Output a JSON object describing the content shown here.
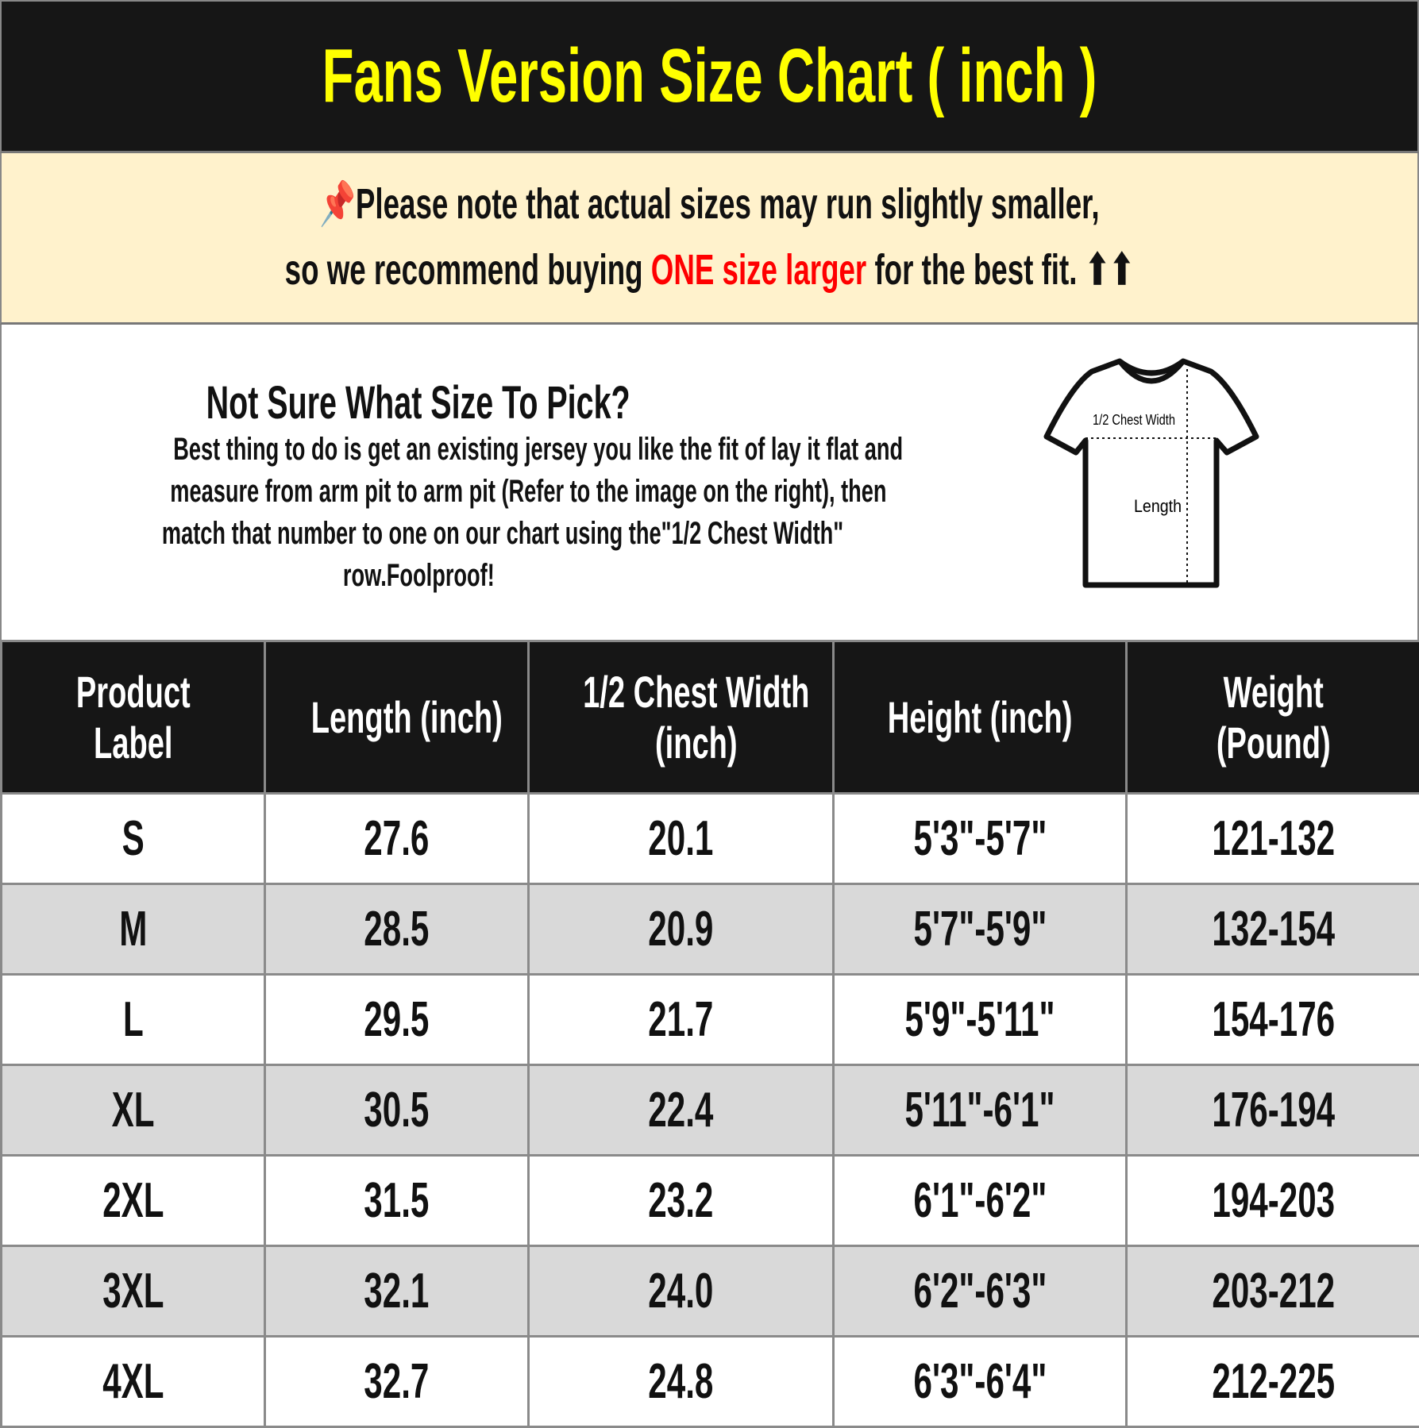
{
  "title": "Fans Version Size Chart ( inch )",
  "note": {
    "icon": "pushpin-icon",
    "line1": "Please note that actual sizes may run slightly smaller,",
    "line2_pre": "so we recommend buying ",
    "line2_highlight": "ONE size larger",
    "line2_post": " for the best fit. ⬆⬆",
    "highlight_color": "#ff0000"
  },
  "help": {
    "heading": "Not Sure What Size To Pick?",
    "lines": [
      "Best thing to do is get an existing jersey you like the fit of lay it flat and",
      "measure from arm pit to arm pit (Refer to the image on the right), then",
      "match that number to one on our chart using the\"1/2 Chest Width\"",
      "row.Foolproof!"
    ],
    "diagram": {
      "chest_label": "1/2 Chest Width",
      "length_label": "Length"
    }
  },
  "table": {
    "headers": [
      [
        "Product",
        "Label"
      ],
      [
        "Length (inch)"
      ],
      [
        "1/2 Chest Width",
        "(inch)"
      ],
      [
        "Height (inch)"
      ],
      [
        "Weight",
        "(Pound)"
      ]
    ],
    "rows": [
      [
        "S",
        "27.6",
        "20.1",
        "5'3\"-5'7\"",
        "121-132"
      ],
      [
        "M",
        "28.5",
        "20.9",
        "5'7\"-5'9\"",
        "132-154"
      ],
      [
        "L",
        "29.5",
        "21.7",
        "5'9\"-5'11\"",
        "154-176"
      ],
      [
        "XL",
        "30.5",
        "22.4",
        "5'11\"-6'1\"",
        "176-194"
      ],
      [
        "2XL",
        "31.5",
        "23.2",
        "6'1\"-6'2\"",
        "194-203"
      ],
      [
        "3XL",
        "32.1",
        "24.0",
        "6'2\"-6'3\"",
        "203-212"
      ],
      [
        "4XL",
        "32.7",
        "24.8",
        "6'3\"-6'4\"",
        "212-225"
      ]
    ]
  },
  "colors": {
    "title": "#ffff00",
    "header_bg": "#161616",
    "note_bg": "#fff2cc",
    "alt_row": "#d9d9d9"
  }
}
